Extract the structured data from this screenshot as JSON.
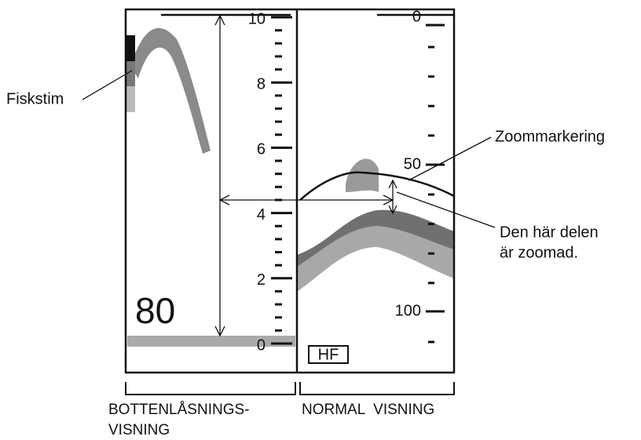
{
  "labels": {
    "fish_school": "Fiskstim",
    "zoom_marker": "Zoommarkering",
    "zoomed_part": [
      "Den här delen",
      "är zoomad."
    ],
    "range_value": "80",
    "frequency": "HF"
  },
  "left_scale": [
    "10",
    "8",
    "6",
    "4",
    "2",
    "0"
  ],
  "right_scale": [
    "0",
    "50",
    "100"
  ],
  "captions": {
    "left": [
      "BOTTENLÅSNINGS-",
      "VISNING"
    ],
    "right": "NORMAL  VISNING"
  }
}
